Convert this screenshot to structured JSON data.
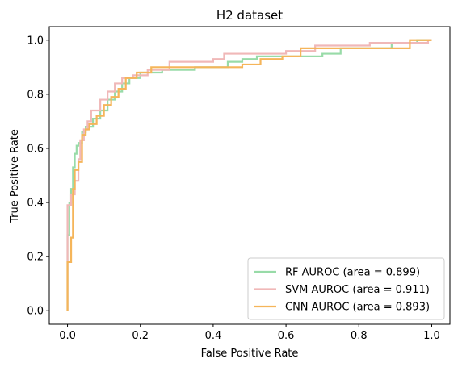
{
  "chart_data": {
    "type": "line",
    "title": "H2 dataset",
    "xlabel": "False Positive Rate",
    "ylabel": "True Positive Rate",
    "xlim": [
      -0.05,
      1.05
    ],
    "ylim": [
      -0.05,
      1.05
    ],
    "xticks": [
      0.0,
      0.2,
      0.4,
      0.6,
      0.8,
      1.0
    ],
    "xtick_labels": [
      "0.0",
      "0.2",
      "0.4",
      "0.6",
      "0.8",
      "1.0"
    ],
    "yticks": [
      0.0,
      0.2,
      0.4,
      0.6,
      0.8,
      1.0
    ],
    "ytick_labels": [
      "0.0",
      "0.2",
      "0.4",
      "0.6",
      "0.8",
      "1.0"
    ],
    "grid": false,
    "legend_position": "lower-right",
    "series": [
      {
        "name": "RF AUROC (area = 0.899)",
        "color": "#98dba8",
        "points": [
          [
            0,
            0
          ],
          [
            0,
            0.28
          ],
          [
            0.005,
            0.28
          ],
          [
            0.005,
            0.4
          ],
          [
            0.01,
            0.4
          ],
          [
            0.01,
            0.45
          ],
          [
            0.015,
            0.45
          ],
          [
            0.015,
            0.53
          ],
          [
            0.02,
            0.53
          ],
          [
            0.02,
            0.58
          ],
          [
            0.025,
            0.58
          ],
          [
            0.025,
            0.61
          ],
          [
            0.03,
            0.61
          ],
          [
            0.03,
            0.62
          ],
          [
            0.04,
            0.62
          ],
          [
            0.04,
            0.66
          ],
          [
            0.05,
            0.66
          ],
          [
            0.05,
            0.68
          ],
          [
            0.07,
            0.68
          ],
          [
            0.07,
            0.71
          ],
          [
            0.09,
            0.71
          ],
          [
            0.09,
            0.74
          ],
          [
            0.11,
            0.74
          ],
          [
            0.11,
            0.78
          ],
          [
            0.13,
            0.78
          ],
          [
            0.13,
            0.81
          ],
          [
            0.15,
            0.81
          ],
          [
            0.15,
            0.84
          ],
          [
            0.17,
            0.84
          ],
          [
            0.17,
            0.86
          ],
          [
            0.2,
            0.86
          ],
          [
            0.2,
            0.88
          ],
          [
            0.26,
            0.88
          ],
          [
            0.26,
            0.89
          ],
          [
            0.35,
            0.89
          ],
          [
            0.35,
            0.9
          ],
          [
            0.44,
            0.9
          ],
          [
            0.44,
            0.92
          ],
          [
            0.48,
            0.92
          ],
          [
            0.48,
            0.93
          ],
          [
            0.52,
            0.93
          ],
          [
            0.52,
            0.94
          ],
          [
            0.7,
            0.94
          ],
          [
            0.7,
            0.95
          ],
          [
            0.75,
            0.95
          ],
          [
            0.75,
            0.97
          ],
          [
            0.89,
            0.97
          ],
          [
            0.89,
            0.99
          ],
          [
            0.96,
            0.99
          ],
          [
            0.96,
            1.0
          ],
          [
            1.0,
            1.0
          ]
        ]
      },
      {
        "name": "SVM AUROC (area = 0.911)",
        "color": "#f0b8b8",
        "points": [
          [
            0,
            0
          ],
          [
            0,
            0.39
          ],
          [
            0.01,
            0.39
          ],
          [
            0.01,
            0.43
          ],
          [
            0.02,
            0.43
          ],
          [
            0.02,
            0.48
          ],
          [
            0.03,
            0.48
          ],
          [
            0.03,
            0.56
          ],
          [
            0.035,
            0.56
          ],
          [
            0.035,
            0.63
          ],
          [
            0.045,
            0.63
          ],
          [
            0.045,
            0.67
          ],
          [
            0.055,
            0.67
          ],
          [
            0.055,
            0.7
          ],
          [
            0.065,
            0.7
          ],
          [
            0.065,
            0.74
          ],
          [
            0.09,
            0.74
          ],
          [
            0.09,
            0.78
          ],
          [
            0.11,
            0.78
          ],
          [
            0.11,
            0.81
          ],
          [
            0.13,
            0.81
          ],
          [
            0.13,
            0.84
          ],
          [
            0.15,
            0.84
          ],
          [
            0.15,
            0.86
          ],
          [
            0.18,
            0.86
          ],
          [
            0.18,
            0.87
          ],
          [
            0.22,
            0.87
          ],
          [
            0.22,
            0.89
          ],
          [
            0.28,
            0.89
          ],
          [
            0.28,
            0.92
          ],
          [
            0.4,
            0.92
          ],
          [
            0.4,
            0.93
          ],
          [
            0.43,
            0.93
          ],
          [
            0.43,
            0.95
          ],
          [
            0.6,
            0.95
          ],
          [
            0.6,
            0.96
          ],
          [
            0.68,
            0.96
          ],
          [
            0.68,
            0.98
          ],
          [
            0.83,
            0.98
          ],
          [
            0.83,
            0.99
          ],
          [
            0.99,
            0.99
          ],
          [
            0.99,
            1.0
          ],
          [
            1.0,
            1.0
          ]
        ]
      },
      {
        "name": "CNN AUROC (area = 0.893)",
        "color": "#f5b55a",
        "points": [
          [
            0,
            0
          ],
          [
            0,
            0.18
          ],
          [
            0.01,
            0.18
          ],
          [
            0.01,
            0.27
          ],
          [
            0.015,
            0.27
          ],
          [
            0.015,
            0.45
          ],
          [
            0.02,
            0.45
          ],
          [
            0.02,
            0.52
          ],
          [
            0.03,
            0.52
          ],
          [
            0.03,
            0.55
          ],
          [
            0.04,
            0.55
          ],
          [
            0.04,
            0.65
          ],
          [
            0.05,
            0.65
          ],
          [
            0.05,
            0.67
          ],
          [
            0.06,
            0.67
          ],
          [
            0.06,
            0.69
          ],
          [
            0.08,
            0.69
          ],
          [
            0.08,
            0.72
          ],
          [
            0.1,
            0.72
          ],
          [
            0.1,
            0.76
          ],
          [
            0.12,
            0.76
          ],
          [
            0.12,
            0.79
          ],
          [
            0.14,
            0.79
          ],
          [
            0.14,
            0.82
          ],
          [
            0.16,
            0.82
          ],
          [
            0.16,
            0.86
          ],
          [
            0.19,
            0.86
          ],
          [
            0.19,
            0.88
          ],
          [
            0.23,
            0.88
          ],
          [
            0.23,
            0.9
          ],
          [
            0.48,
            0.9
          ],
          [
            0.48,
            0.91
          ],
          [
            0.53,
            0.91
          ],
          [
            0.53,
            0.93
          ],
          [
            0.59,
            0.93
          ],
          [
            0.59,
            0.94
          ],
          [
            0.64,
            0.94
          ],
          [
            0.64,
            0.97
          ],
          [
            0.94,
            0.97
          ],
          [
            0.94,
            1.0
          ],
          [
            1.0,
            1.0
          ]
        ]
      }
    ]
  }
}
